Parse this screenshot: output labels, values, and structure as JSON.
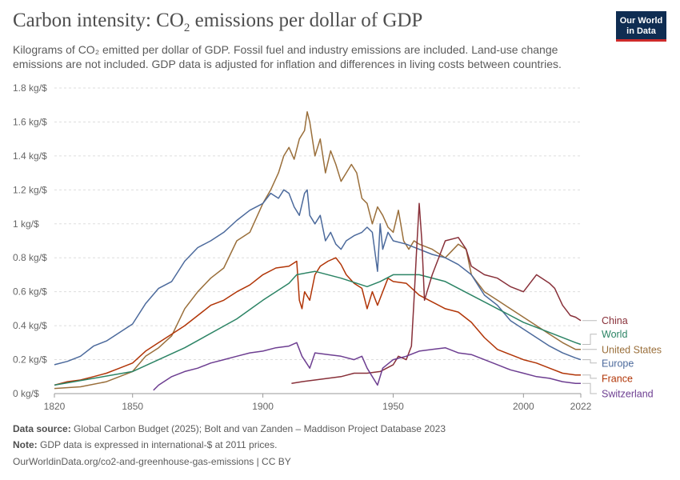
{
  "header": {
    "title_main": "Carbon intensity: CO",
    "title_sub": "2",
    "title_rest": " emissions per dollar of GDP",
    "subtitle_line1": "Kilograms of CO₂ emitted per dollar of GDP. Fossil fuel and industry emissions are included. Land-use change",
    "subtitle_line2": "emissions are not included. GDP data is adjusted for inflation and differences in living costs between countries."
  },
  "logo": {
    "line1": "Our World",
    "line2": "in Data"
  },
  "footer": {
    "source_label": "Data source:",
    "source_text": " Global Carbon Budget (2025); Bolt and van Zanden – Maddison Project Database 2023",
    "note_label": "Note:",
    "note_text": " GDP data is expressed in international-$ at 2011 prices.",
    "url": "OurWorldinData.org/co2-and-greenhouse-gas-emissions | CC BY"
  },
  "chart_data": {
    "type": "line",
    "title": "Carbon intensity: CO₂ emissions per dollar of GDP",
    "xlabel": "",
    "ylabel": "",
    "xlim": [
      1820,
      2022
    ],
    "ylim": [
      0,
      1.8
    ],
    "x_ticks": [
      1820,
      1850,
      1900,
      1950,
      2000,
      2022
    ],
    "y_ticks": [
      {
        "value": 0,
        "label": "0 kg/$"
      },
      {
        "value": 0.2,
        "label": "0.2 kg/$"
      },
      {
        "value": 0.4,
        "label": "0.4 kg/$"
      },
      {
        "value": 0.6,
        "label": "0.6 kg/$"
      },
      {
        "value": 0.8,
        "label": "0.8 kg/$"
      },
      {
        "value": 1,
        "label": "1 kg/$"
      },
      {
        "value": 1.2,
        "label": "1.2 kg/$"
      },
      {
        "value": 1.4,
        "label": "1.4 kg/$"
      },
      {
        "value": 1.6,
        "label": "1.6 kg/$"
      },
      {
        "value": 1.8,
        "label": "1.8 kg/$"
      }
    ],
    "grid": "horizontal dashed",
    "legend": "right, end-of-line labels",
    "series": [
      {
        "name": "United States",
        "color": "#9a6f3b",
        "points": [
          [
            1820,
            0.03
          ],
          [
            1830,
            0.04
          ],
          [
            1840,
            0.07
          ],
          [
            1850,
            0.13
          ],
          [
            1855,
            0.22
          ],
          [
            1860,
            0.27
          ],
          [
            1865,
            0.34
          ],
          [
            1870,
            0.5
          ],
          [
            1875,
            0.6
          ],
          [
            1880,
            0.68
          ],
          [
            1885,
            0.74
          ],
          [
            1890,
            0.9
          ],
          [
            1895,
            0.95
          ],
          [
            1900,
            1.12
          ],
          [
            1903,
            1.2
          ],
          [
            1906,
            1.3
          ],
          [
            1908,
            1.4
          ],
          [
            1910,
            1.45
          ],
          [
            1912,
            1.38
          ],
          [
            1914,
            1.5
          ],
          [
            1916,
            1.55
          ],
          [
            1917,
            1.66
          ],
          [
            1918,
            1.6
          ],
          [
            1920,
            1.4
          ],
          [
            1922,
            1.5
          ],
          [
            1924,
            1.3
          ],
          [
            1926,
            1.43
          ],
          [
            1928,
            1.35
          ],
          [
            1930,
            1.25
          ],
          [
            1932,
            1.3
          ],
          [
            1934,
            1.35
          ],
          [
            1936,
            1.3
          ],
          [
            1938,
            1.15
          ],
          [
            1940,
            1.12
          ],
          [
            1942,
            1.0
          ],
          [
            1944,
            1.1
          ],
          [
            1946,
            1.05
          ],
          [
            1948,
            0.98
          ],
          [
            1950,
            0.95
          ],
          [
            1952,
            1.08
          ],
          [
            1954,
            0.9
          ],
          [
            1956,
            0.85
          ],
          [
            1958,
            0.9
          ],
          [
            1960,
            0.88
          ],
          [
            1965,
            0.85
          ],
          [
            1970,
            0.8
          ],
          [
            1975,
            0.88
          ],
          [
            1978,
            0.85
          ],
          [
            1980,
            0.7
          ],
          [
            1985,
            0.6
          ],
          [
            1990,
            0.55
          ],
          [
            1995,
            0.5
          ],
          [
            2000,
            0.45
          ],
          [
            2005,
            0.4
          ],
          [
            2010,
            0.35
          ],
          [
            2015,
            0.3
          ],
          [
            2020,
            0.26
          ],
          [
            2022,
            0.26
          ]
        ]
      },
      {
        "name": "Europe",
        "color": "#4c6a9c",
        "points": [
          [
            1820,
            0.17
          ],
          [
            1825,
            0.19
          ],
          [
            1830,
            0.22
          ],
          [
            1835,
            0.28
          ],
          [
            1840,
            0.31
          ],
          [
            1845,
            0.36
          ],
          [
            1850,
            0.41
          ],
          [
            1855,
            0.53
          ],
          [
            1860,
            0.62
          ],
          [
            1865,
            0.66
          ],
          [
            1870,
            0.78
          ],
          [
            1875,
            0.86
          ],
          [
            1880,
            0.9
          ],
          [
            1885,
            0.95
          ],
          [
            1890,
            1.02
          ],
          [
            1895,
            1.08
          ],
          [
            1900,
            1.12
          ],
          [
            1903,
            1.18
          ],
          [
            1906,
            1.15
          ],
          [
            1908,
            1.2
          ],
          [
            1910,
            1.18
          ],
          [
            1912,
            1.1
          ],
          [
            1914,
            1.05
          ],
          [
            1916,
            1.18
          ],
          [
            1917,
            1.2
          ],
          [
            1918,
            1.05
          ],
          [
            1920,
            1.0
          ],
          [
            1922,
            1.05
          ],
          [
            1924,
            0.9
          ],
          [
            1926,
            0.95
          ],
          [
            1928,
            0.88
          ],
          [
            1930,
            0.85
          ],
          [
            1932,
            0.9
          ],
          [
            1935,
            0.93
          ],
          [
            1938,
            0.95
          ],
          [
            1940,
            0.98
          ],
          [
            1942,
            0.95
          ],
          [
            1944,
            0.72
          ],
          [
            1945,
            1.0
          ],
          [
            1946,
            0.85
          ],
          [
            1948,
            0.95
          ],
          [
            1950,
            0.9
          ],
          [
            1955,
            0.88
          ],
          [
            1960,
            0.85
          ],
          [
            1965,
            0.82
          ],
          [
            1970,
            0.8
          ],
          [
            1975,
            0.76
          ],
          [
            1980,
            0.7
          ],
          [
            1985,
            0.58
          ],
          [
            1990,
            0.52
          ],
          [
            1995,
            0.43
          ],
          [
            2000,
            0.38
          ],
          [
            2005,
            0.33
          ],
          [
            2010,
            0.28
          ],
          [
            2015,
            0.24
          ],
          [
            2020,
            0.21
          ],
          [
            2022,
            0.2
          ]
        ]
      },
      {
        "name": "France",
        "color": "#b13507",
        "points": [
          [
            1820,
            0.05
          ],
          [
            1825,
            0.07
          ],
          [
            1830,
            0.08
          ],
          [
            1835,
            0.1
          ],
          [
            1840,
            0.12
          ],
          [
            1845,
            0.15
          ],
          [
            1850,
            0.18
          ],
          [
            1855,
            0.25
          ],
          [
            1860,
            0.3
          ],
          [
            1865,
            0.35
          ],
          [
            1870,
            0.4
          ],
          [
            1875,
            0.46
          ],
          [
            1880,
            0.52
          ],
          [
            1885,
            0.55
          ],
          [
            1890,
            0.6
          ],
          [
            1895,
            0.64
          ],
          [
            1900,
            0.7
          ],
          [
            1905,
            0.74
          ],
          [
            1910,
            0.75
          ],
          [
            1913,
            0.78
          ],
          [
            1914,
            0.55
          ],
          [
            1915,
            0.5
          ],
          [
            1916,
            0.6
          ],
          [
            1918,
            0.55
          ],
          [
            1920,
            0.7
          ],
          [
            1922,
            0.75
          ],
          [
            1925,
            0.78
          ],
          [
            1928,
            0.8
          ],
          [
            1930,
            0.76
          ],
          [
            1932,
            0.7
          ],
          [
            1935,
            0.65
          ],
          [
            1938,
            0.62
          ],
          [
            1940,
            0.5
          ],
          [
            1942,
            0.6
          ],
          [
            1944,
            0.52
          ],
          [
            1946,
            0.6
          ],
          [
            1948,
            0.68
          ],
          [
            1950,
            0.66
          ],
          [
            1955,
            0.65
          ],
          [
            1960,
            0.58
          ],
          [
            1965,
            0.54
          ],
          [
            1970,
            0.5
          ],
          [
            1975,
            0.48
          ],
          [
            1980,
            0.42
          ],
          [
            1985,
            0.33
          ],
          [
            1990,
            0.26
          ],
          [
            1995,
            0.23
          ],
          [
            2000,
            0.2
          ],
          [
            2005,
            0.18
          ],
          [
            2010,
            0.15
          ],
          [
            2015,
            0.12
          ],
          [
            2020,
            0.11
          ],
          [
            2022,
            0.11
          ]
        ]
      },
      {
        "name": "World",
        "color": "#2c8465",
        "points": [
          [
            1820,
            0.05
          ],
          [
            1850,
            0.13
          ],
          [
            1870,
            0.27
          ],
          [
            1890,
            0.44
          ],
          [
            1900,
            0.55
          ],
          [
            1910,
            0.65
          ],
          [
            1913,
            0.7
          ],
          [
            1920,
            0.72
          ],
          [
            1930,
            0.68
          ],
          [
            1940,
            0.63
          ],
          [
            1945,
            0.66
          ],
          [
            1950,
            0.7
          ],
          [
            1960,
            0.7
          ],
          [
            1970,
            0.66
          ],
          [
            1980,
            0.58
          ],
          [
            1990,
            0.5
          ],
          [
            2000,
            0.42
          ],
          [
            2010,
            0.36
          ],
          [
            2020,
            0.3
          ],
          [
            2022,
            0.29
          ]
        ]
      },
      {
        "name": "China",
        "color": "#883039",
        "points": [
          [
            1911,
            0.06
          ],
          [
            1915,
            0.07
          ],
          [
            1920,
            0.08
          ],
          [
            1925,
            0.09
          ],
          [
            1930,
            0.1
          ],
          [
            1935,
            0.12
          ],
          [
            1940,
            0.12
          ],
          [
            1945,
            0.13
          ],
          [
            1950,
            0.17
          ],
          [
            1952,
            0.22
          ],
          [
            1955,
            0.2
          ],
          [
            1957,
            0.28
          ],
          [
            1958,
            0.55
          ],
          [
            1959,
            0.85
          ],
          [
            1960,
            1.12
          ],
          [
            1961,
            0.9
          ],
          [
            1962,
            0.55
          ],
          [
            1963,
            0.6
          ],
          [
            1965,
            0.7
          ],
          [
            1970,
            0.9
          ],
          [
            1975,
            0.92
          ],
          [
            1978,
            0.85
          ],
          [
            1980,
            0.75
          ],
          [
            1985,
            0.7
          ],
          [
            1990,
            0.68
          ],
          [
            1995,
            0.63
          ],
          [
            2000,
            0.6
          ],
          [
            2005,
            0.7
          ],
          [
            2010,
            0.65
          ],
          [
            2012,
            0.62
          ],
          [
            2015,
            0.52
          ],
          [
            2018,
            0.46
          ],
          [
            2020,
            0.45
          ],
          [
            2022,
            0.43
          ]
        ]
      },
      {
        "name": "Switzerland",
        "color": "#6d3e91",
        "points": [
          [
            1858,
            0.02
          ],
          [
            1860,
            0.05
          ],
          [
            1865,
            0.1
          ],
          [
            1870,
            0.13
          ],
          [
            1875,
            0.15
          ],
          [
            1880,
            0.18
          ],
          [
            1885,
            0.2
          ],
          [
            1890,
            0.22
          ],
          [
            1895,
            0.24
          ],
          [
            1900,
            0.25
          ],
          [
            1905,
            0.27
          ],
          [
            1910,
            0.28
          ],
          [
            1913,
            0.3
          ],
          [
            1915,
            0.22
          ],
          [
            1918,
            0.15
          ],
          [
            1920,
            0.24
          ],
          [
            1925,
            0.23
          ],
          [
            1930,
            0.22
          ],
          [
            1935,
            0.2
          ],
          [
            1938,
            0.22
          ],
          [
            1940,
            0.15
          ],
          [
            1944,
            0.05
          ],
          [
            1946,
            0.15
          ],
          [
            1950,
            0.2
          ],
          [
            1955,
            0.22
          ],
          [
            1960,
            0.25
          ],
          [
            1965,
            0.26
          ],
          [
            1970,
            0.27
          ],
          [
            1975,
            0.24
          ],
          [
            1980,
            0.23
          ],
          [
            1985,
            0.2
          ],
          [
            1990,
            0.17
          ],
          [
            1995,
            0.14
          ],
          [
            2000,
            0.12
          ],
          [
            2005,
            0.1
          ],
          [
            2010,
            0.09
          ],
          [
            2015,
            0.07
          ],
          [
            2020,
            0.06
          ],
          [
            2022,
            0.06
          ]
        ]
      }
    ],
    "legend_labels": [
      {
        "name": "China",
        "value": 0.43
      },
      {
        "name": "World",
        "value": 0.35
      },
      {
        "name": "United States",
        "value": 0.26
      },
      {
        "name": "Europe",
        "value": 0.18
      },
      {
        "name": "France",
        "value": 0.09
      },
      {
        "name": "Switzerland",
        "value": 0.0
      }
    ]
  }
}
